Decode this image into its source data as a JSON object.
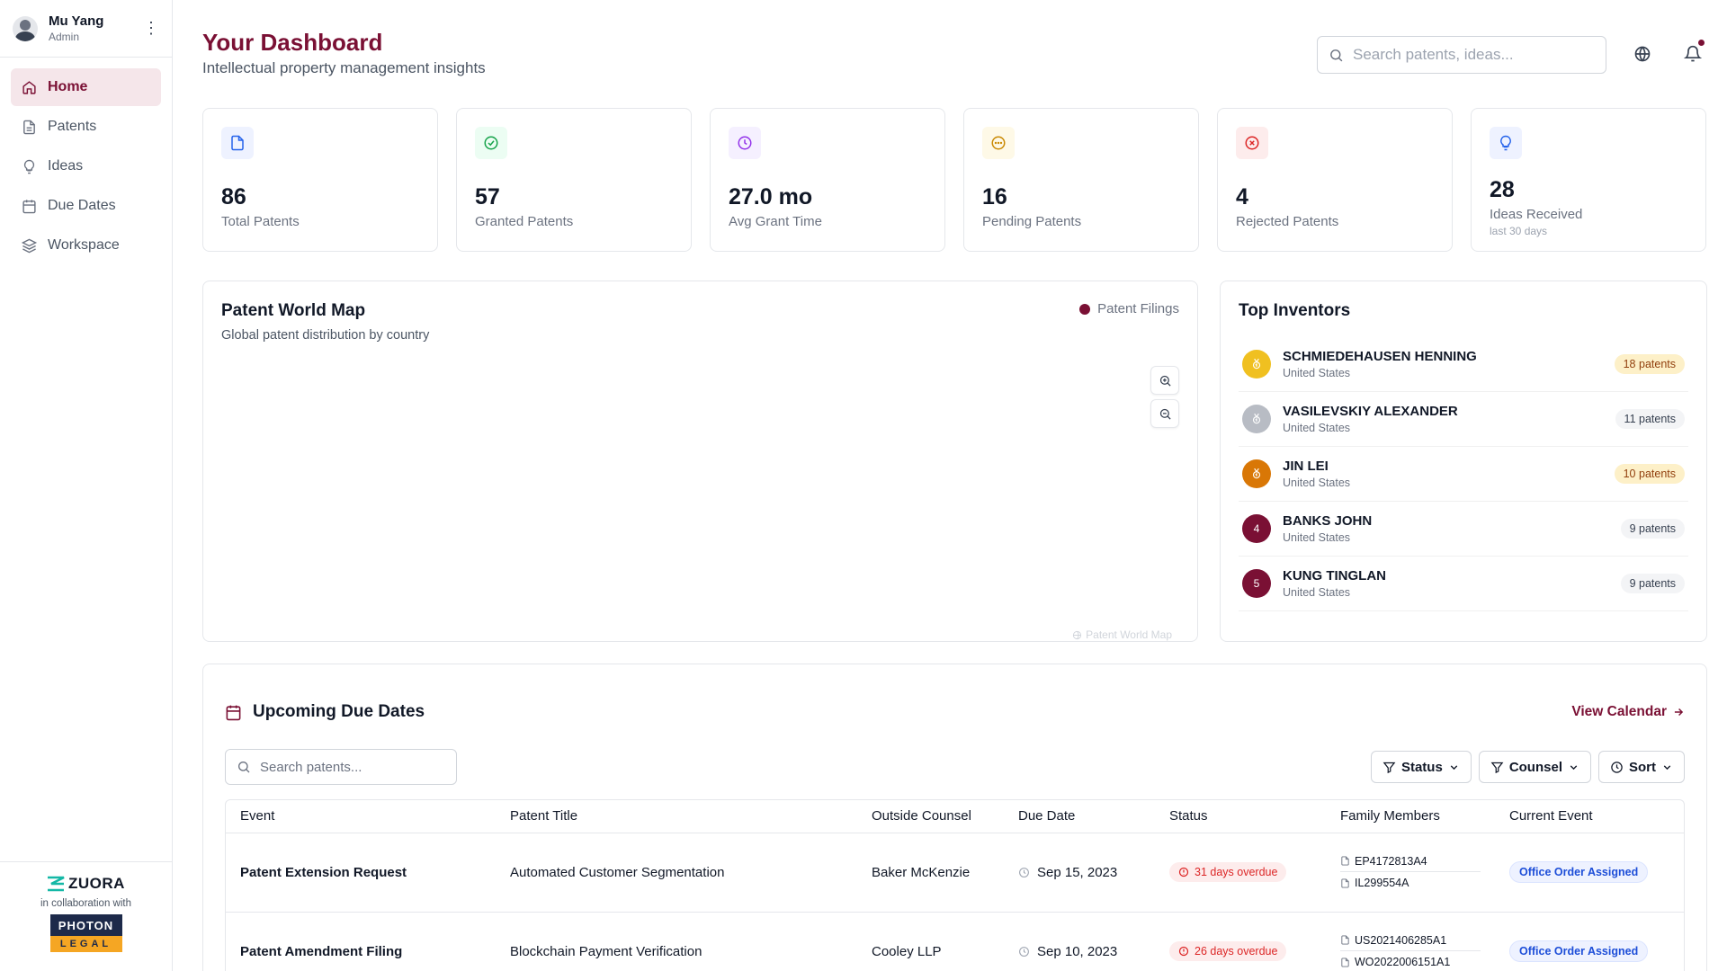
{
  "user": {
    "name": "Mu Yang",
    "role": "Admin"
  },
  "nav": [
    {
      "label": "Home",
      "icon": "home-icon",
      "active": true
    },
    {
      "label": "Patents",
      "icon": "document-icon"
    },
    {
      "label": "Ideas",
      "icon": "lightbulb-icon"
    },
    {
      "label": "Due Dates",
      "icon": "calendar-icon"
    },
    {
      "label": "Workspace",
      "icon": "layers-icon"
    }
  ],
  "footer": {
    "brand": "ZUORA",
    "collab": "in collaboration with",
    "partner_top": "PHOTON",
    "partner_bottom": "LEGAL"
  },
  "header": {
    "title": "Your Dashboard",
    "subtitle": "Intellectual property management insights",
    "search_placeholder": "Search patents, ideas..."
  },
  "stats": [
    {
      "value": "86",
      "label": "Total Patents",
      "icon": "document-icon",
      "color": "#2563eb",
      "bg": "#eef2ff"
    },
    {
      "value": "57",
      "label": "Granted Patents",
      "icon": "check-circle-icon",
      "color": "#16a34a",
      "bg": "#ecfdf3"
    },
    {
      "value": "27.0 mo",
      "label": "Avg Grant Time",
      "icon": "clock-icon",
      "color": "#9333ea",
      "bg": "#f5f0ff"
    },
    {
      "value": "16",
      "label": "Pending Patents",
      "icon": "pending-circle-icon",
      "color": "#ca8a04",
      "bg": "#fef9e7"
    },
    {
      "value": "4",
      "label": "Rejected Patents",
      "icon": "x-circle-icon",
      "color": "#dc2626",
      "bg": "#fdecec"
    },
    {
      "value": "28",
      "label": "Ideas Received",
      "note": "last 30 days",
      "icon": "lightbulb-icon",
      "color": "#2563eb",
      "bg": "#eef2ff"
    }
  ],
  "map": {
    "title": "Patent World Map",
    "subtitle": "Global patent distribution by country",
    "legend": "Patent Filings",
    "attribution": "Patent World Map",
    "legend_color": "#7a1034"
  },
  "inventors": {
    "title": "Top Inventors",
    "list": [
      {
        "rank": "1",
        "name": "SCHMIEDEHAUSEN HENNING",
        "country": "United States",
        "count": "18 patents",
        "badge": "medal-icon",
        "color": "#f0c020",
        "gold": true
      },
      {
        "rank": "2",
        "name": "VASILEVSKIY ALEXANDER",
        "country": "United States",
        "count": "11 patents",
        "badge": "medal-icon",
        "color": "#b8bcc4",
        "gold": false
      },
      {
        "rank": "3",
        "name": "JIN LEI",
        "country": "United States",
        "count": "10 patents",
        "badge": "medal-icon",
        "color": "#d97706",
        "gold": true
      },
      {
        "rank": "4",
        "name": "BANKS JOHN",
        "country": "United States",
        "count": "9 patents",
        "badge": "",
        "color": "#7a1034",
        "gold": false
      },
      {
        "rank": "5",
        "name": "KUNG TINGLAN",
        "country": "United States",
        "count": "9 patents",
        "badge": "",
        "color": "#7a1034",
        "gold": false
      }
    ]
  },
  "due": {
    "title": "Upcoming Due Dates",
    "view_calendar": "View Calendar",
    "search_placeholder": "Search patents...",
    "filters": [
      {
        "label": "Status",
        "icon": "filter-icon"
      },
      {
        "label": "Counsel",
        "icon": "filter-icon"
      },
      {
        "label": "Sort",
        "icon": "clock-icon"
      }
    ],
    "columns": [
      "Event",
      "Patent Title",
      "Outside Counsel",
      "Due Date",
      "Status",
      "Family Members",
      "Current Event"
    ],
    "rows": [
      {
        "event": "Patent Extension Request",
        "title": "Automated Customer Segmentation",
        "counsel": "Baker McKenzie",
        "date": "Sep 15, 2023",
        "status": "31 days overdue",
        "family": [
          "EP4172813A4",
          "IL299554A"
        ],
        "current": "Office Order Assigned"
      },
      {
        "event": "Patent Amendment Filing",
        "title": "Blockchain Payment Verification",
        "counsel": "Cooley LLP",
        "date": "Sep 10, 2023",
        "status": "26 days overdue",
        "family": [
          "US2021406285A1",
          "WO2022006151A1"
        ],
        "current": "Office Order Assigned"
      }
    ]
  }
}
